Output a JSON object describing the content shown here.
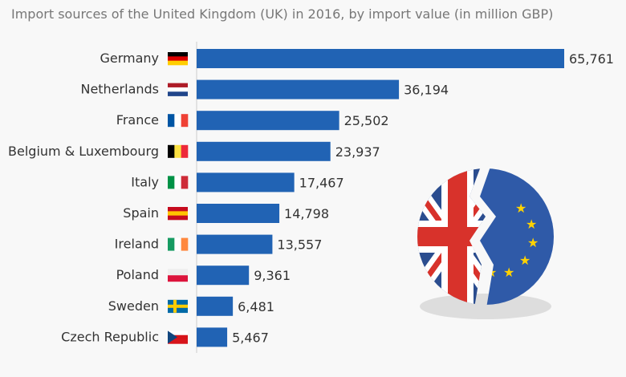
{
  "chart_data": {
    "type": "bar",
    "orientation": "horizontal",
    "subtitle": "Import sources of the United Kingdom (UK) in 2016, by import value (in million GBP)",
    "categories": [
      "Germany",
      "Netherlands",
      "France",
      "Belgium & Luxembourg",
      "Italy",
      "Spain",
      "Ireland",
      "Poland",
      "Sweden",
      "Czech Republic"
    ],
    "values": [
      65761,
      36194,
      25502,
      23937,
      17467,
      14798,
      13557,
      9361,
      6481,
      5467
    ],
    "value_labels": [
      "65,761",
      "36,194",
      "25,502",
      "23,937",
      "17,467",
      "14,798",
      "13,557",
      "9,361",
      "6,481",
      "5,467"
    ],
    "flags": [
      "germany-flag",
      "netherlands-flag",
      "france-flag",
      "belgium-luxembourg-flag",
      "italy-flag",
      "spain-flag",
      "ireland-flag",
      "poland-flag",
      "sweden-flag",
      "czech-flag"
    ],
    "bar_color": "#2163b4",
    "xlim": [
      0,
      65761
    ],
    "grid": false
  },
  "illustration": "brexit-broken-uk-eu-flag"
}
